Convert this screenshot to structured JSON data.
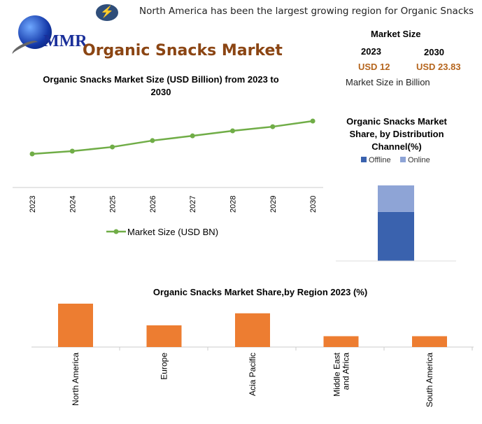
{
  "header": {
    "headline": "North America has been the largest growing region for Organic Snacks",
    "headline_icon": "lightning-bolt-icon",
    "logo_text": "MMR",
    "title": "Organic Snacks Market",
    "title_color": "#8B4513"
  },
  "market_size": {
    "heading": "Market Size",
    "year_a": "2023",
    "year_b": "2030",
    "value_a": "USD 12",
    "value_b": "USD 23.83",
    "note": "Market Size in Billion",
    "value_color": "#B5651D"
  },
  "chart_data": [
    {
      "type": "line",
      "title": "Organic Snacks Market Size (USD Billion) from 2023 to 2030",
      "categories": [
        "2023",
        "2024",
        "2025",
        "2026",
        "2027",
        "2028",
        "2029",
        "2030"
      ],
      "series": [
        {
          "name": "Market Size (USD BN)",
          "values": [
            12,
            13.0,
            14.5,
            16.8,
            18.5,
            20.3,
            21.8,
            23.83
          ],
          "color": "#70AD47"
        }
      ],
      "legend": "bottom",
      "grid": false
    },
    {
      "type": "bar",
      "stacked": true,
      "title": "Organic Snacks Market Share, by Distribution Channel(%)",
      "categories": [
        ""
      ],
      "series": [
        {
          "name": "Offline",
          "values": [
            65
          ],
          "color": "#3A62AE"
        },
        {
          "name": "Online",
          "values": [
            35
          ],
          "color": "#8EA4D6"
        }
      ],
      "legend": "top"
    },
    {
      "type": "bar",
      "title": "Organic Snacks Market Share,by Region 2023 (%)",
      "categories": [
        "North America",
        "Europe",
        "Acia Pacific",
        "Middle East and Africa",
        "South America"
      ],
      "values": [
        36,
        18,
        28,
        9,
        9
      ],
      "color": "#ED7D31"
    }
  ]
}
